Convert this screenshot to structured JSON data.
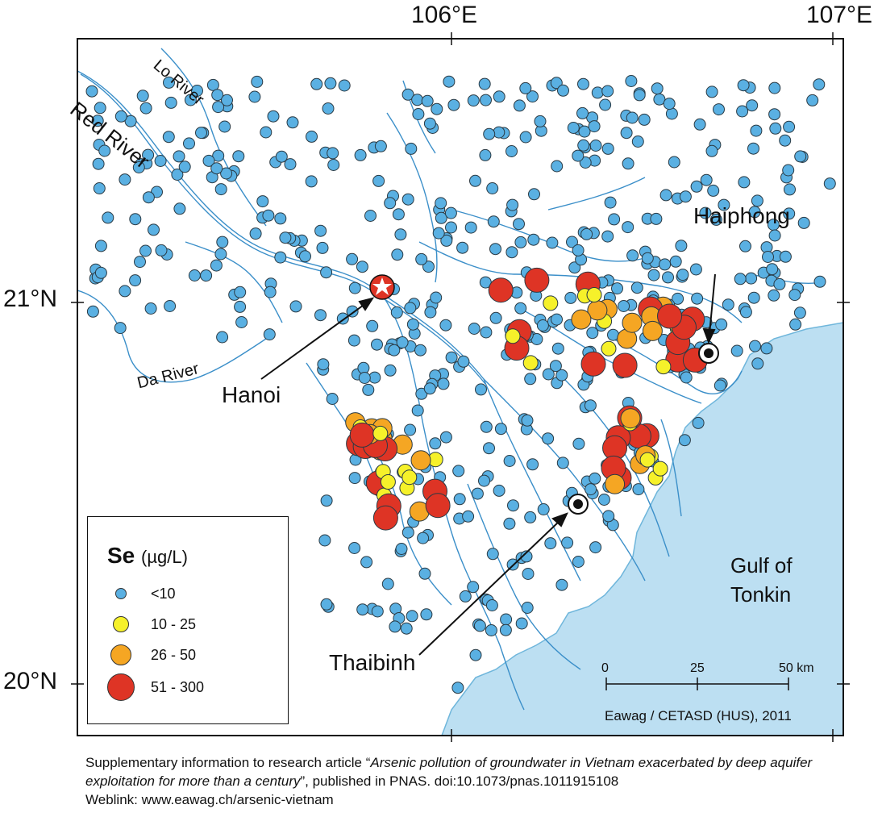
{
  "map": {
    "lon_labels": [
      "106°E",
      "107°E"
    ],
    "lat_labels": [
      "21°N",
      "20°N"
    ],
    "colors": {
      "frame": "#111111",
      "sea": "#bcdff2",
      "coast": "#6fb6db",
      "river": "#3b8fc9",
      "land": "#ffffff",
      "cls_lt10": "#5ab0e2",
      "cls_10_25": "#f6f12a",
      "cls_26_50": "#f5a623",
      "cls_51_300": "#de3425"
    },
    "rivers": {
      "red": "Red River",
      "lo": "Lo River",
      "da": "Da River"
    },
    "cities": {
      "hanoi": "Hanoi",
      "haiphong": "Haiphong",
      "thaibinh": "Thaibinh"
    },
    "sea_label_line1": "Gulf of",
    "sea_label_line2": "Tonkin",
    "hanoi_marker": "star-icon",
    "city_marker": "bullseye-icon",
    "scale": {
      "ticks": [
        "0",
        "25",
        "50 km"
      ]
    },
    "credit": "Eawag / CETASD (HUS), 2011"
  },
  "legend": {
    "element": "Se",
    "unit": "(µg/L)",
    "classes": [
      {
        "label": "<10",
        "color": "#5ab0e2"
      },
      {
        "label": "10 - 25",
        "color": "#f6f12a"
      },
      {
        "label": "26 - 50",
        "color": "#f5a623"
      },
      {
        "label": "51 - 300",
        "color": "#de3425"
      }
    ]
  },
  "caption": {
    "prefix": "Supplementary information to research article “",
    "title": "Arsenic pollution of groundwater in Vietnam exacerbated by deep aquifer exploitation for more than a century",
    "suffix": "”, published in PNAS. doi:10.1073/pnas.1011915108",
    "weblink": "Weblink: www.eawag.ch/arsenic-vietnam"
  }
}
